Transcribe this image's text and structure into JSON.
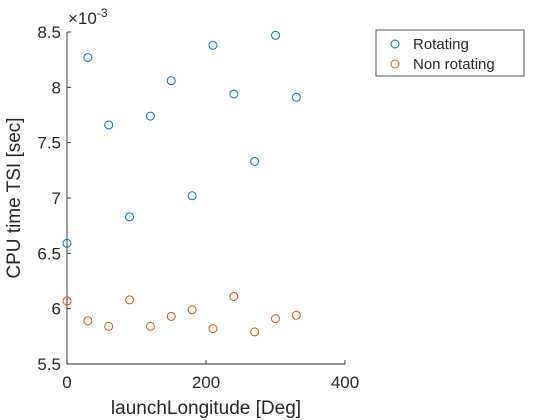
{
  "chart_data": {
    "type": "scatter",
    "xlabel": "launchLongitude [Deg]",
    "ylabel": "CPU time TSI [sec]",
    "y_multiplier": {
      "base": "×10",
      "exponent": "-3"
    },
    "xlim": [
      0,
      400
    ],
    "ylim": [
      5.5,
      8.5
    ],
    "x_ticks": [
      0,
      200,
      400
    ],
    "y_ticks": [
      5.5,
      6,
      6.5,
      7,
      7.5,
      8,
      8.5
    ],
    "x_tick_labels": [
      "0",
      "200",
      "400"
    ],
    "y_tick_labels": [
      "5.5",
      "6",
      "6.5",
      "7",
      "7.5",
      "8",
      "8.5"
    ],
    "grid": false,
    "legend_placement": "outside-top-right",
    "series": [
      {
        "name": "Rotating",
        "color": "#0072BD",
        "marker": "circle",
        "x": [
          0,
          30,
          60,
          90,
          120,
          150,
          180,
          210,
          240,
          270,
          300,
          330
        ],
        "y": [
          6.59,
          8.27,
          7.66,
          6.83,
          7.74,
          8.06,
          7.02,
          8.38,
          7.94,
          7.33,
          8.47,
          7.91
        ]
      },
      {
        "name": "Non rotating",
        "color": "#D95319",
        "marker": "circle",
        "x": [
          0,
          30,
          60,
          90,
          120,
          150,
          180,
          210,
          240,
          270,
          300,
          330
        ],
        "y": [
          6.07,
          5.89,
          5.84,
          6.08,
          5.84,
          5.93,
          5.99,
          5.82,
          6.11,
          5.79,
          5.91,
          5.94
        ]
      }
    ]
  }
}
